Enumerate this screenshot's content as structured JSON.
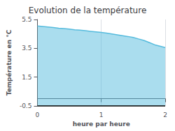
{
  "chart_data": {
    "type": "area",
    "title": "Evolution de la température",
    "x_label": "heure par heure",
    "y_label": "Température en °C",
    "x": [
      0.0,
      0.083,
      0.167,
      0.25,
      0.333,
      0.417,
      0.5,
      0.583,
      0.667,
      0.75,
      0.833,
      0.917,
      1.0,
      1.083,
      1.167,
      1.25,
      1.333,
      1.417,
      1.5,
      1.583,
      1.667,
      1.75,
      1.833,
      1.917,
      2.0
    ],
    "values": [
      5.05,
      5.02,
      4.98,
      4.94,
      4.9,
      4.87,
      4.83,
      4.79,
      4.76,
      4.72,
      4.68,
      4.64,
      4.6,
      4.56,
      4.5,
      4.44,
      4.38,
      4.32,
      4.25,
      4.15,
      4.05,
      3.9,
      3.75,
      3.65,
      3.55
    ],
    "baseline": -0.5,
    "color": "#55bbdd",
    "xlim": [
      0,
      2
    ],
    "xticks": [
      0,
      1,
      2
    ],
    "ylim": [
      -0.5,
      5.5
    ],
    "yticks": [
      -0.5,
      1.5,
      3.5,
      5.5
    ],
    "grid": "x"
  }
}
